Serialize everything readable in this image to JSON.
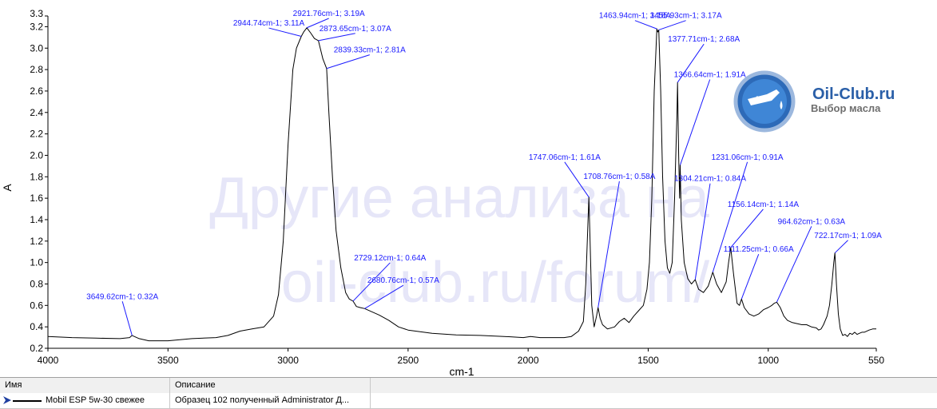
{
  "chart_data": {
    "type": "line",
    "xlabel": "cm-1",
    "ylabel": "A",
    "xlim": [
      4000,
      550
    ],
    "x_reversed": true,
    "ylim": [
      0.2,
      3.3
    ],
    "grid": false,
    "x_ticks": [
      "4000",
      "3500",
      "3000",
      "2500",
      "2000",
      "1500",
      "1000",
      "550"
    ],
    "y_ticks": [
      "0.2",
      "0.4",
      "0.6",
      "0.8",
      "1.0",
      "1.2",
      "1.4",
      "1.6",
      "1.8",
      "2.0",
      "2.2",
      "2.4",
      "2.6",
      "2.8",
      "3.0",
      "3.2",
      "3.3"
    ],
    "series": [
      {
        "name": "Mobil ESP 5w-30 свежее",
        "color": "#000000",
        "points": [
          [
            4000,
            0.31
          ],
          [
            3900,
            0.3
          ],
          [
            3800,
            0.295
          ],
          [
            3700,
            0.29
          ],
          [
            3660,
            0.3
          ],
          [
            3649.62,
            0.32
          ],
          [
            3620,
            0.29
          ],
          [
            3580,
            0.27
          ],
          [
            3500,
            0.27
          ],
          [
            3450,
            0.28
          ],
          [
            3400,
            0.29
          ],
          [
            3300,
            0.3
          ],
          [
            3250,
            0.32
          ],
          [
            3200,
            0.36
          ],
          [
            3150,
            0.38
          ],
          [
            3100,
            0.4
          ],
          [
            3060,
            0.5
          ],
          [
            3040,
            0.7
          ],
          [
            3020,
            1.2
          ],
          [
            3000,
            2.1
          ],
          [
            2980,
            2.8
          ],
          [
            2965,
            3.0
          ],
          [
            2944.74,
            3.11
          ],
          [
            2935,
            3.15
          ],
          [
            2921.76,
            3.19
          ],
          [
            2905,
            3.14
          ],
          [
            2890,
            3.09
          ],
          [
            2873.65,
            3.07
          ],
          [
            2855,
            2.9
          ],
          [
            2839.33,
            2.81
          ],
          [
            2830,
            2.4
          ],
          [
            2815,
            1.8
          ],
          [
            2800,
            1.3
          ],
          [
            2780,
            0.95
          ],
          [
            2760,
            0.72
          ],
          [
            2745,
            0.66
          ],
          [
            2729.12,
            0.64
          ],
          [
            2715,
            0.59
          ],
          [
            2700,
            0.58
          ],
          [
            2680.76,
            0.57
          ],
          [
            2650,
            0.54
          ],
          [
            2620,
            0.51
          ],
          [
            2580,
            0.46
          ],
          [
            2540,
            0.4
          ],
          [
            2500,
            0.37
          ],
          [
            2400,
            0.34
          ],
          [
            2300,
            0.325
          ],
          [
            2200,
            0.32
          ],
          [
            2100,
            0.31
          ],
          [
            2020,
            0.3
          ],
          [
            1990,
            0.31
          ],
          [
            1950,
            0.3
          ],
          [
            1900,
            0.3
          ],
          [
            1850,
            0.3
          ],
          [
            1820,
            0.31
          ],
          [
            1790,
            0.36
          ],
          [
            1770,
            0.45
          ],
          [
            1760,
            0.8
          ],
          [
            1752,
            1.3
          ],
          [
            1747.06,
            1.61
          ],
          [
            1742,
            1.2
          ],
          [
            1735,
            0.6
          ],
          [
            1725,
            0.4
          ],
          [
            1715,
            0.5
          ],
          [
            1708.76,
            0.58
          ],
          [
            1700,
            0.48
          ],
          [
            1690,
            0.42
          ],
          [
            1670,
            0.38
          ],
          [
            1640,
            0.4
          ],
          [
            1620,
            0.45
          ],
          [
            1600,
            0.48
          ],
          [
            1580,
            0.44
          ],
          [
            1560,
            0.5
          ],
          [
            1540,
            0.55
          ],
          [
            1520,
            0.6
          ],
          [
            1505,
            0.75
          ],
          [
            1495,
            1.0
          ],
          [
            1485,
            1.6
          ],
          [
            1475,
            2.6
          ],
          [
            1463.94,
            3.18
          ],
          [
            1460,
            3.15
          ],
          [
            1455.93,
            3.17
          ],
          [
            1448,
            2.6
          ],
          [
            1440,
            1.8
          ],
          [
            1430,
            1.2
          ],
          [
            1420,
            0.95
          ],
          [
            1410,
            0.9
          ],
          [
            1400,
            1.0
          ],
          [
            1390,
            1.6
          ],
          [
            1380,
            2.4
          ],
          [
            1377.71,
            2.68
          ],
          [
            1373,
            2.0
          ],
          [
            1369,
            1.6
          ],
          [
            1366.64,
            1.91
          ],
          [
            1362,
            1.4
          ],
          [
            1350,
            1.0
          ],
          [
            1335,
            0.85
          ],
          [
            1320,
            0.8
          ],
          [
            1304.21,
            0.84
          ],
          [
            1290,
            0.75
          ],
          [
            1270,
            0.72
          ],
          [
            1250,
            0.78
          ],
          [
            1231.06,
            0.91
          ],
          [
            1215,
            0.8
          ],
          [
            1195,
            0.72
          ],
          [
            1175,
            0.82
          ],
          [
            1165,
            1.0
          ],
          [
            1156.14,
            1.14
          ],
          [
            1145,
            0.9
          ],
          [
            1130,
            0.62
          ],
          [
            1120,
            0.6
          ],
          [
            1111.25,
            0.66
          ],
          [
            1100,
            0.58
          ],
          [
            1080,
            0.52
          ],
          [
            1060,
            0.5
          ],
          [
            1040,
            0.52
          ],
          [
            1020,
            0.56
          ],
          [
            1000,
            0.58
          ],
          [
            985,
            0.6
          ],
          [
            975,
            0.62
          ],
          [
            964.62,
            0.63
          ],
          [
            950,
            0.58
          ],
          [
            935,
            0.5
          ],
          [
            920,
            0.46
          ],
          [
            900,
            0.44
          ],
          [
            880,
            0.43
          ],
          [
            860,
            0.42
          ],
          [
            840,
            0.42
          ],
          [
            820,
            0.4
          ],
          [
            800,
            0.39
          ],
          [
            790,
            0.37
          ],
          [
            780,
            0.38
          ],
          [
            770,
            0.42
          ],
          [
            755,
            0.5
          ],
          [
            745,
            0.6
          ],
          [
            735,
            0.8
          ],
          [
            727,
            1.0
          ],
          [
            722.17,
            1.09
          ],
          [
            716,
            0.8
          ],
          [
            708,
            0.52
          ],
          [
            700,
            0.38
          ],
          [
            690,
            0.32
          ],
          [
            680,
            0.33
          ],
          [
            670,
            0.31
          ],
          [
            660,
            0.34
          ],
          [
            650,
            0.33
          ],
          [
            640,
            0.35
          ],
          [
            630,
            0.33
          ],
          [
            620,
            0.34
          ],
          [
            610,
            0.35
          ],
          [
            600,
            0.35
          ],
          [
            580,
            0.37
          ],
          [
            565,
            0.38
          ],
          [
            550,
            0.38
          ]
        ]
      }
    ],
    "annotations": [
      {
        "text": "3649.62cm-1; 0.32A",
        "x": 3649.62,
        "y": 0.32,
        "label_x": 3690,
        "label_y": 0.66,
        "anchor": "middle"
      },
      {
        "text": "2944.74cm-1; 3.11A",
        "x": 2944.74,
        "y": 3.11,
        "label_x": 3080,
        "label_y": 3.21,
        "anchor": "middle"
      },
      {
        "text": "2921.76cm-1; 3.19A",
        "x": 2921.76,
        "y": 3.19,
        "label_x": 2830,
        "label_y": 3.3,
        "anchor": "middle"
      },
      {
        "text": "2873.65cm-1; 3.07A",
        "x": 2873.65,
        "y": 3.07,
        "label_x": 2720,
        "label_y": 3.16,
        "anchor": "middle"
      },
      {
        "text": "2839.33cm-1; 2.81A",
        "x": 2839.33,
        "y": 2.81,
        "label_x": 2660,
        "label_y": 2.96,
        "anchor": "middle"
      },
      {
        "text": "2729.12cm-1; 0.64A",
        "x": 2729.12,
        "y": 0.64,
        "label_x": 2575,
        "label_y": 1.02,
        "anchor": "middle"
      },
      {
        "text": "2680.76cm-1; 0.57A",
        "x": 2680.76,
        "y": 0.57,
        "label_x": 2520,
        "label_y": 0.81,
        "anchor": "middle"
      },
      {
        "text": "1747.06cm-1; 1.61A",
        "x": 1747.06,
        "y": 1.61,
        "label_x": 1848,
        "label_y": 1.96,
        "anchor": "middle"
      },
      {
        "text": "1708.76cm-1; 0.58A",
        "x": 1708.76,
        "y": 0.58,
        "label_x": 1620,
        "label_y": 1.78,
        "anchor": "middle"
      },
      {
        "text": "1463.94cm-1; 3.18A",
        "x": 1463.94,
        "y": 3.18,
        "label_x": 1555,
        "label_y": 3.28,
        "anchor": "middle"
      },
      {
        "text": "1455.93cm-1; 3.17A",
        "x": 1455.93,
        "y": 3.17,
        "label_x": 1343,
        "label_y": 3.28,
        "anchor": "middle"
      },
      {
        "text": "1377.71cm-1; 2.68A",
        "x": 1377.71,
        "y": 2.68,
        "label_x": 1268,
        "label_y": 3.06,
        "anchor": "middle"
      },
      {
        "text": "1366.64cm-1; 1.91A",
        "x": 1366.64,
        "y": 1.91,
        "label_x": 1243,
        "label_y": 2.73,
        "anchor": "middle"
      },
      {
        "text": "1304.21cm-1; 0.84A",
        "x": 1304.21,
        "y": 0.84,
        "label_x": 1242,
        "label_y": 1.76,
        "anchor": "middle"
      },
      {
        "text": "1231.06cm-1; 0.91A",
        "x": 1231.06,
        "y": 0.91,
        "label_x": 1087,
        "label_y": 1.96,
        "anchor": "middle"
      },
      {
        "text": "1156.14cm-1; 1.14A",
        "x": 1156.14,
        "y": 1.14,
        "label_x": 1021,
        "label_y": 1.52,
        "anchor": "middle"
      },
      {
        "text": "1111.25cm-1; 0.66A",
        "x": 1111.25,
        "y": 0.66,
        "label_x": 1040,
        "label_y": 1.1,
        "anchor": "middle"
      },
      {
        "text": "964.62cm-1; 0.63A",
        "x": 964.62,
        "y": 0.63,
        "label_x": 820,
        "label_y": 1.36,
        "anchor": "middle"
      },
      {
        "text": "722.17cm-1; 1.09A",
        "x": 722.17,
        "y": 1.09,
        "label_x": 668,
        "label_y": 1.23,
        "anchor": "middle"
      }
    ],
    "watermark": [
      "Другие анализа на",
      "oil-club.ru/forum/"
    ],
    "logo": {
      "title": "Oil-Club.ru",
      "subtitle": "Выбор масла"
    }
  },
  "legend_table": {
    "header": {
      "col_name": "Имя",
      "col_description": "Описание"
    },
    "rows": [
      {
        "name": "Mobil ESP 5w-30 свежее",
        "description": "Образец 102 полученный Administrator Д..."
      }
    ]
  },
  "colors": {
    "trace": "#000000",
    "annotation": "#1a1aff",
    "watermark": "#e6e6f8",
    "logo_accent": "#2a5fa8"
  }
}
